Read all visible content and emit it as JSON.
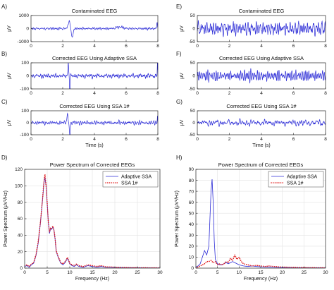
{
  "colors": {
    "series_blue": "#2b2bd6",
    "series_red": "#e01b1b",
    "axis": "#222222",
    "grid": "#e3e3e3"
  },
  "chart_data": [
    {
      "id": "A",
      "panel_label": "A)",
      "type": "line",
      "title": "Contaminated EEG",
      "xlabel": "",
      "ylabel": "μV",
      "xlim": [
        0,
        8
      ],
      "ylim": [
        -1000,
        1000
      ],
      "xticks": [
        0,
        2,
        4,
        6,
        8
      ],
      "xtick_labels": [
        "0",
        "2",
        "4",
        "6",
        "8"
      ],
      "yticks": [
        -1000,
        0,
        1000
      ],
      "ytick_labels": [
        "-1000",
        "0",
        "1000"
      ],
      "signal": {
        "kind": "eeg",
        "amp": 80,
        "spikes": [
          {
            "t": 2.4,
            "a": 550,
            "w": 0.09
          },
          {
            "t": 2.6,
            "a": -650,
            "w": 0.08
          },
          {
            "t": 5.6,
            "a": 120,
            "w": 0.3
          },
          {
            "t": 7.95,
            "a": 500,
            "w": 0.03
          }
        ],
        "seed": 3
      }
    },
    {
      "id": "B",
      "panel_label": "B)",
      "type": "line",
      "title": "Corrected EEG Using Adaptive SSA",
      "xlabel": "",
      "ylabel": "μV",
      "xlim": [
        0,
        8
      ],
      "ylim": [
        -100,
        100
      ],
      "xticks": [
        0,
        2,
        4,
        6,
        8
      ],
      "xtick_labels": [
        "0",
        "2",
        "4",
        "6",
        "8"
      ],
      "yticks": [
        -100,
        0,
        100
      ],
      "ytick_labels": [
        "-100",
        "0",
        "100"
      ],
      "signal": {
        "kind": "eeg",
        "amp": 20,
        "spikes": [
          {
            "t": 2.35,
            "a": 110,
            "w": 0.03
          },
          {
            "t": 2.45,
            "a": -120,
            "w": 0.03
          },
          {
            "t": 7.98,
            "a": 110,
            "w": 0.02
          }
        ],
        "seed": 7
      }
    },
    {
      "id": "C",
      "panel_label": "C)",
      "type": "line",
      "title": "Corrected EEG Using SSA 1#",
      "xlabel": "Time (s)",
      "ylabel": "μV",
      "xlim": [
        0,
        8
      ],
      "ylim": [
        -100,
        100
      ],
      "xticks": [
        0,
        2,
        4,
        6,
        8
      ],
      "xtick_labels": [
        "0",
        "2",
        "4",
        "6",
        "8"
      ],
      "yticks": [
        -100,
        0,
        100
      ],
      "ytick_labels": [
        "-100",
        "0",
        "100"
      ],
      "signal": {
        "kind": "eeg",
        "amp": 15,
        "spikes": [
          {
            "t": 2.3,
            "a": 90,
            "w": 0.04
          },
          {
            "t": 2.45,
            "a": -100,
            "w": 0.04
          },
          {
            "t": 7.98,
            "a": 60,
            "w": 0.02
          }
        ],
        "seed": 11
      }
    },
    {
      "id": "D",
      "panel_label": "D)",
      "type": "line",
      "title": "Power Spectrum of Corrected EEGs",
      "xlabel": "Frequency (Hz)",
      "ylabel": "Power Spectrum (μV²/Hz)",
      "xlim": [
        0,
        30
      ],
      "ylim": [
        0,
        120
      ],
      "xticks": [
        0,
        5,
        10,
        15,
        20,
        25,
        30
      ],
      "xtick_labels": [
        "0",
        "5",
        "10",
        "15",
        "20",
        "25",
        "30"
      ],
      "yticks": [
        0,
        20,
        40,
        60,
        80,
        100,
        120
      ],
      "ytick_labels": [
        "0",
        "20",
        "40",
        "60",
        "80",
        "100",
        "120"
      ],
      "grid": true,
      "legend": "top-right",
      "series": [
        {
          "name": "Adaptive SSA",
          "style": "solid",
          "color": "#2b2bd6",
          "x": [
            0,
            0.5,
            1,
            1.5,
            2,
            2.5,
            3,
            3.5,
            4,
            4.25,
            4.5,
            4.75,
            5,
            5.25,
            5.5,
            5.75,
            6,
            6.25,
            6.5,
            6.75,
            7,
            7.5,
            8,
            8.5,
            9,
            9.5,
            10,
            10.5,
            11,
            11.5,
            12,
            13,
            14,
            15,
            16,
            17,
            18,
            19,
            20,
            22,
            24,
            26,
            28,
            30
          ],
          "y": [
            2,
            3,
            1,
            4,
            6,
            15,
            30,
            55,
            85,
            102,
            110,
            100,
            78,
            55,
            42,
            48,
            47,
            50,
            46,
            35,
            20,
            12,
            6,
            4,
            7,
            12,
            5,
            3,
            2,
            4,
            2,
            1,
            3,
            2,
            1,
            2,
            1,
            1,
            0.8,
            0.6,
            0.5,
            0.4,
            0.3,
            0.2
          ]
        },
        {
          "name": "SSA 1#",
          "style": "dotted",
          "color": "#e01b1b",
          "x": [
            0,
            0.5,
            1,
            1.5,
            2,
            2.5,
            3,
            3.5,
            4,
            4.25,
            4.5,
            4.75,
            5,
            5.25,
            5.5,
            5.75,
            6,
            6.25,
            6.5,
            6.75,
            7,
            7.5,
            8,
            8.5,
            9,
            9.5,
            10,
            10.5,
            11,
            11.5,
            12,
            13,
            14,
            15,
            16,
            17,
            18,
            19,
            20,
            22,
            24,
            26,
            28,
            30
          ],
          "y": [
            3,
            4,
            2,
            5,
            7,
            16,
            32,
            56,
            86,
            104,
            114,
            100,
            79,
            56,
            44,
            49,
            48,
            51,
            46,
            36,
            21,
            13,
            7,
            5,
            8,
            13,
            6,
            4,
            3,
            5,
            3,
            2,
            4,
            3,
            2,
            3,
            1.5,
            1.5,
            1,
            0.8,
            0.6,
            0.5,
            0.4,
            0.3
          ]
        }
      ]
    },
    {
      "id": "E",
      "panel_label": "E)",
      "type": "line",
      "title": "Contaminated EEG",
      "xlabel": "",
      "ylabel": "μV",
      "xlim": [
        0,
        8
      ],
      "ylim": [
        -50,
        50
      ],
      "xticks": [
        0,
        2,
        4,
        6,
        8
      ],
      "xtick_labels": [
        "0",
        "2",
        "4",
        "6",
        "8"
      ],
      "yticks": [
        -50,
        0,
        50
      ],
      "ytick_labels": [
        "-50",
        "0",
        "50"
      ],
      "signal": {
        "kind": "eeg",
        "amp": 24,
        "spikes": [],
        "seed": 19
      }
    },
    {
      "id": "F",
      "panel_label": "F)",
      "type": "line",
      "title": "Corrected EEG Using Adaptive SSA",
      "xlabel": "",
      "ylabel": "μV",
      "xlim": [
        0,
        8
      ],
      "ylim": [
        -50,
        50
      ],
      "xticks": [
        0,
        2,
        4,
        6,
        8
      ],
      "xtick_labels": [
        "0",
        "2",
        "4",
        "6",
        "8"
      ],
      "yticks": [
        -50,
        0,
        50
      ],
      "ytick_labels": [
        "-50",
        "0",
        "50"
      ],
      "signal": {
        "kind": "eeg",
        "amp": 20,
        "spikes": [],
        "seed": 23
      }
    },
    {
      "id": "G",
      "panel_label": "G)",
      "type": "line",
      "title": "Corrected EEG Using SSA 1#",
      "xlabel": "Time (s)",
      "ylabel": "μV",
      "xlim": [
        0,
        8
      ],
      "ylim": [
        -50,
        50
      ],
      "xticks": [
        0,
        2,
        4,
        6,
        8
      ],
      "xtick_labels": [
        "0",
        "2",
        "4",
        "6",
        "8"
      ],
      "yticks": [
        -50,
        0,
        50
      ],
      "ytick_labels": [
        "-50",
        "0",
        "50"
      ],
      "signal": {
        "kind": "eeg",
        "amp": 10,
        "spikes": [],
        "seed": 31
      }
    },
    {
      "id": "H",
      "panel_label": "H)",
      "type": "line",
      "title": "Power Spectrum of Corrected EEGs",
      "xlabel": "Frequency (Hz)",
      "ylabel": "Power Spectrum (μV²/Hz)",
      "xlim": [
        0,
        30
      ],
      "ylim": [
        0,
        90
      ],
      "xticks": [
        0,
        5,
        10,
        15,
        20,
        25,
        30
      ],
      "xtick_labels": [
        "0",
        "5",
        "10",
        "15",
        "20",
        "25",
        "30"
      ],
      "yticks": [
        0,
        10,
        20,
        30,
        40,
        50,
        60,
        70,
        80,
        90
      ],
      "ytick_labels": [
        "0",
        "10",
        "20",
        "30",
        "40",
        "50",
        "60",
        "70",
        "80",
        "90"
      ],
      "grid": true,
      "legend": "top-right",
      "series": [
        {
          "name": "Adaptive SSA",
          "style": "solid",
          "color": "#2b2bd6",
          "x": [
            0,
            0.5,
            1,
            1.5,
            2,
            2.5,
            3,
            3.25,
            3.5,
            3.75,
            4,
            4.25,
            4.5,
            5,
            5.5,
            6,
            6.5,
            7,
            7.5,
            8,
            8.5,
            9,
            9.5,
            10,
            11,
            12,
            13,
            14,
            15,
            16,
            18,
            20,
            22,
            24,
            26,
            28,
            30
          ],
          "y": [
            1,
            2,
            4,
            10,
            16,
            12,
            20,
            45,
            70,
            81,
            60,
            25,
            8,
            4,
            3,
            3,
            4,
            5,
            4,
            5,
            6,
            5,
            4,
            3,
            2,
            1.5,
            2,
            1.5,
            1.2,
            1,
            0.8,
            0.6,
            0.5,
            0.4,
            0.3,
            0.3,
            0.2
          ]
        },
        {
          "name": "SSA 1#",
          "style": "dotted",
          "color": "#e01b1b",
          "x": [
            0,
            0.5,
            1,
            1.5,
            2,
            2.5,
            3,
            3.5,
            4,
            4.5,
            5,
            5.5,
            6,
            6.5,
            7,
            7.5,
            8,
            8.5,
            9,
            9.5,
            10,
            10.5,
            11,
            12,
            13,
            14,
            15,
            16,
            17,
            18,
            19,
            20,
            22,
            24,
            26,
            28,
            30
          ],
          "y": [
            0.5,
            1,
            2,
            3,
            4,
            6,
            6,
            7,
            5,
            6,
            3,
            4,
            3,
            4,
            6,
            5,
            9,
            7,
            12,
            8,
            10,
            6,
            4,
            3,
            2,
            2.5,
            2,
            1.5,
            2,
            1.5,
            1.2,
            1,
            0.8,
            0.6,
            0.5,
            0.4,
            0.3
          ]
        }
      ]
    }
  ]
}
